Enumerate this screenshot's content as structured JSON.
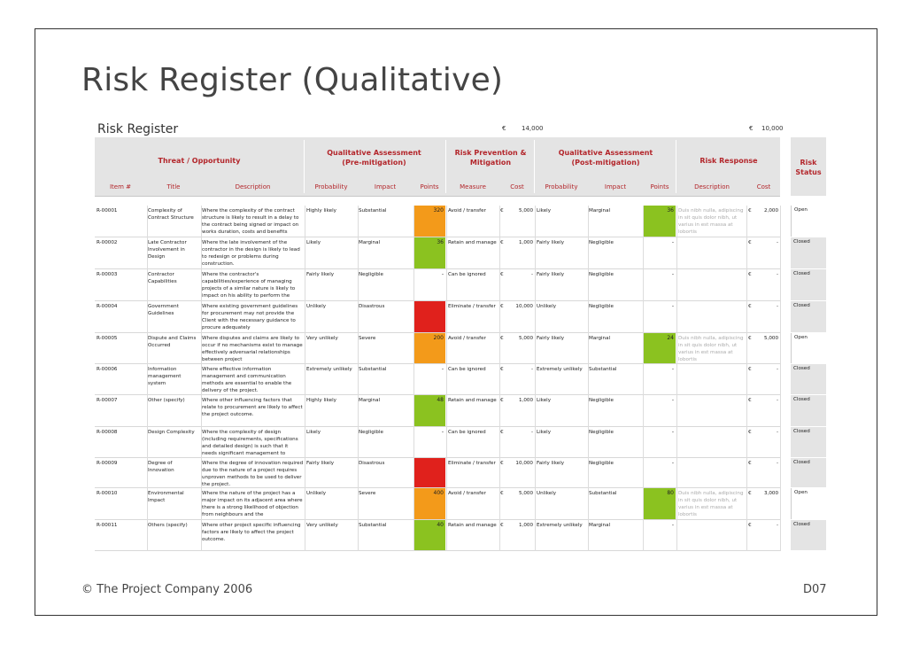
{
  "slide": {
    "title": "Risk Register (Qualitative)",
    "footer_left": "© The Project Company 2006",
    "footer_right": "D07"
  },
  "register": {
    "title": "Risk Register",
    "budget_pre_symbol": "€",
    "budget_pre_value": "14,000",
    "budget_post_symbol": "€",
    "budget_post_value": "10,000"
  },
  "groups": {
    "threat": "Threat / Opportunity",
    "qual_pre": "Qualitative Assessment\n(Pre-mitigation)",
    "prevention": "Risk Prevention &\nMitigation",
    "qual_post": "Qualitative Assessment\n(Post-mitigation)",
    "response": "Risk Response",
    "status": "Risk\nStatus"
  },
  "columns": [
    "Item #",
    "Title",
    "Description",
    "Probability",
    "Impact",
    "Points",
    "Measure",
    "Cost",
    "Probability",
    "Impact",
    "Points",
    "Description",
    "Cost"
  ],
  "colors": {
    "orange": "#f39a1a",
    "green": "#8bc220",
    "red": "#e0211c",
    "header_text": "#b3262b"
  },
  "rows": [
    {
      "item": "R-00001",
      "title": "Complexity of Contract Structure",
      "desc": "Where the complexity of the contract structure is likely to result in a delay to the contract being signed or impact on works duration, costs and benefits",
      "prob": "Highly likely",
      "impact": "Substantial",
      "points": "320",
      "color": "orange",
      "measure": "Avoid / transfer",
      "cur": "€",
      "cost": "5,000",
      "prob2": "Likely",
      "impact2": "Marginal",
      "points2": "36",
      "color2": "green",
      "resp": "Duis nibh nulla, adipiscing in sit quis dolor nibh, ut varius in est massa at lobortis",
      "rcur": "€",
      "rcost": "2,000",
      "status": "Open"
    },
    {
      "item": "R-00002",
      "title": "Late Contractor Involvement in Design",
      "desc": "Where the late involvement of the contractor in the design is likely to lead to redesign or problems during construction.",
      "prob": "Likely",
      "impact": "Marginal",
      "points": "36",
      "color": "green",
      "measure": "Retain and manage",
      "cur": "€",
      "cost": "1,000",
      "prob2": "Fairly likely",
      "impact2": "Negligible",
      "points2": "-",
      "color2": "",
      "resp": "",
      "rcur": "€",
      "rcost": "-",
      "status": "Closed"
    },
    {
      "item": "R-00003",
      "title": "Contractor Capabilities",
      "desc": "Where the contractor's capabilities/experience of managing projects of a similar nature is likely to impact on his ability to perform the",
      "prob": "Fairly likely",
      "impact": "Negligible",
      "points": "-",
      "color": "",
      "measure": "Can be ignored",
      "cur": "€",
      "cost": "-",
      "prob2": "Fairly likely",
      "impact2": "Negligible",
      "points2": "-",
      "color2": "",
      "resp": "",
      "rcur": "€",
      "rcost": "-",
      "status": "Closed"
    },
    {
      "item": "R-00004",
      "title": "Government Guidelines",
      "desc": "Where existing government guidelines for procurement may not provide the Client with the necessary guidance to procure adequately",
      "prob": "Unlikely",
      "impact": "Disastrous",
      "points": "",
      "color": "red",
      "measure": "Eliminate / transfer",
      "cur": "€",
      "cost": "10,000",
      "prob2": "Unlikely",
      "impact2": "Negligible",
      "points2": "-",
      "color2": "",
      "resp": "",
      "rcur": "€",
      "rcost": "-",
      "status": "Closed"
    },
    {
      "item": "R-00005",
      "title": "Dispute and Claims Occurred",
      "desc": "Where disputes and claims are likely to occur if no mechanisms exist to manage effectively adversarial relationships between project",
      "prob": "Very unlikely",
      "impact": "Severe",
      "points": "200",
      "color": "orange",
      "measure": "Avoid / transfer",
      "cur": "€",
      "cost": "5,000",
      "prob2": "Fairly likely",
      "impact2": "Marginal",
      "points2": "24",
      "color2": "green",
      "resp": "Duis nibh nulla, adipiscing in sit quis dolor nibh, ut varius in est massa at lobortis",
      "rcur": "€",
      "rcost": "5,000",
      "status": "Open"
    },
    {
      "item": "R-00006",
      "title": "Information management system",
      "desc": "Where effective information management and communication methods are essential to enable the delivery of the project.",
      "prob": "Extremely unlikely",
      "impact": "Substantial",
      "points": "-",
      "color": "",
      "measure": "Can be ignored",
      "cur": "€",
      "cost": "-",
      "prob2": "Extremely unlikely",
      "impact2": "Substantial",
      "points2": "-",
      "color2": "",
      "resp": "",
      "rcur": "€",
      "rcost": "-",
      "status": "Closed"
    },
    {
      "item": "R-00007",
      "title": "Other (specify)",
      "desc": "Where other influencing factors that relate to procurement are likely to affect the project outcome.",
      "prob": "Highly likely",
      "impact": "Marginal",
      "points": "48",
      "color": "green",
      "measure": "Retain and manage",
      "cur": "€",
      "cost": "1,000",
      "prob2": "Likely",
      "impact2": "Negligible",
      "points2": "-",
      "color2": "",
      "resp": "",
      "rcur": "€",
      "rcost": "-",
      "status": "Closed"
    },
    {
      "item": "R-00008",
      "title": "Design Complexity",
      "desc": "Where the complexity of design (including requirements, specifications and detailed design) is such that it needs significant management to",
      "prob": "Likely",
      "impact": "Negligible",
      "points": "-",
      "color": "",
      "measure": "Can be ignored",
      "cur": "€",
      "cost": "-",
      "prob2": "Likely",
      "impact2": "Negligible",
      "points2": "-",
      "color2": "",
      "resp": "",
      "rcur": "€",
      "rcost": "-",
      "status": "Closed"
    },
    {
      "item": "R-00009",
      "title": "Degree of Innovation",
      "desc": "Where the degree of innovation required due to the nature of a project requires unproven methods to be used to deliver the project.",
      "prob": "Fairly likely",
      "impact": "Disastrous",
      "points": "",
      "color": "red",
      "measure": "Eliminate / transfer",
      "cur": "€",
      "cost": "10,000",
      "prob2": "Fairly likely",
      "impact2": "Negligible",
      "points2": "-",
      "color2": "",
      "resp": "",
      "rcur": "€",
      "rcost": "-",
      "status": "Closed"
    },
    {
      "item": "R-00010",
      "title": "Environmental Impact",
      "desc": "Where the nature of the project has a major impact on its adjacent area where there is a strong likelihood of objection from neighbours and the",
      "prob": "Unlikely",
      "impact": "Severe",
      "points": "400",
      "color": "orange",
      "measure": "Avoid / transfer",
      "cur": "€",
      "cost": "5,000",
      "prob2": "Unlikely",
      "impact2": "Substantial",
      "points2": "80",
      "color2": "green",
      "resp": "Duis nibh nulla, adipiscing in sit quis dolor nibh, ut varius in est massa at lobortis",
      "rcur": "€",
      "rcost": "3,000",
      "status": "Open"
    },
    {
      "item": "R-00011",
      "title": "Others (specify)",
      "desc": "Where other project specific influencing factors are likely to affect the project outcome.",
      "prob": "Very unlikely",
      "impact": "Substantial",
      "points": "40",
      "color": "green",
      "measure": "Retain and manage",
      "cur": "€",
      "cost": "1,000",
      "prob2": "Extremely unlikely",
      "impact2": "Marginal",
      "points2": "-",
      "color2": "",
      "resp": "",
      "rcur": "€",
      "rcost": "-",
      "status": "Closed"
    }
  ]
}
